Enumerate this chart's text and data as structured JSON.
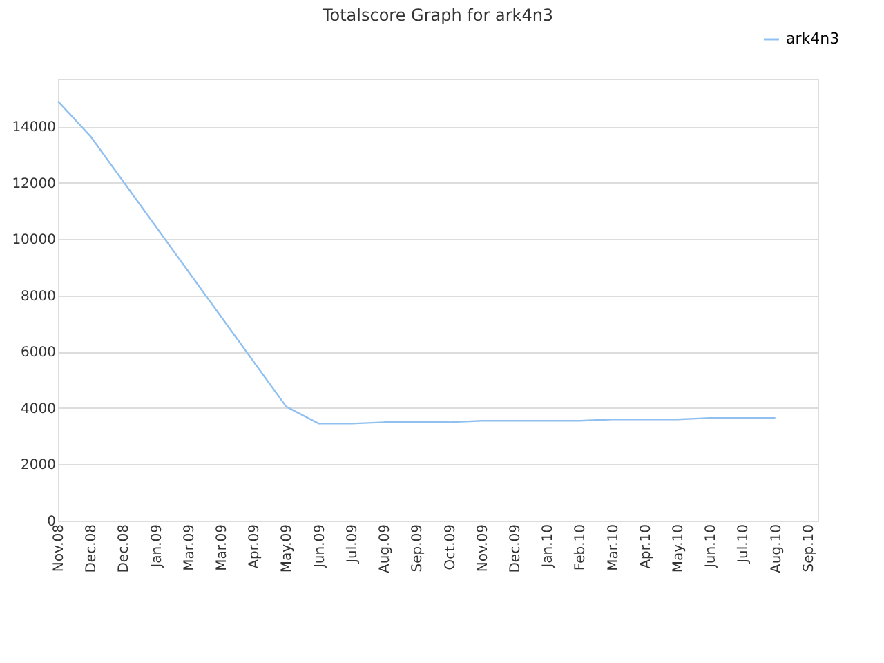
{
  "chart_data": {
    "type": "line",
    "title": "Totalscore Graph for ark4n3",
    "categories": [
      "Nov.08",
      "Dec.08",
      "Dec.08",
      "Jan.09",
      "Mar.09",
      "Mar.09",
      "Apr.09",
      "May.09",
      "Jun.09",
      "Jul.09",
      "Aug.09",
      "Sep.09",
      "Oct.09",
      "Nov.09",
      "Dec.09",
      "Jan.10",
      "Feb.10",
      "Mar.10",
      "Apr.10",
      "May.10",
      "Jun.10",
      "Jul.10",
      "Aug.10",
      "Sep.10"
    ],
    "series": [
      {
        "name": "ark4n3",
        "color": "#90c0f0",
        "values": [
          14900,
          13650,
          12050,
          10450,
          8850,
          7250,
          5650,
          4050,
          3450,
          3450,
          3500,
          3500,
          3500,
          3550,
          3550,
          3550,
          3550,
          3600,
          3600,
          3600,
          3650,
          3650,
          3650,
          null
        ]
      }
    ],
    "ylim": [
      0,
      15700
    ],
    "yticks": [
      0,
      2000,
      4000,
      6000,
      8000,
      10000,
      12000,
      14000
    ],
    "grid": "y",
    "legend": "top right",
    "marker": "none",
    "line_style": "solid"
  }
}
